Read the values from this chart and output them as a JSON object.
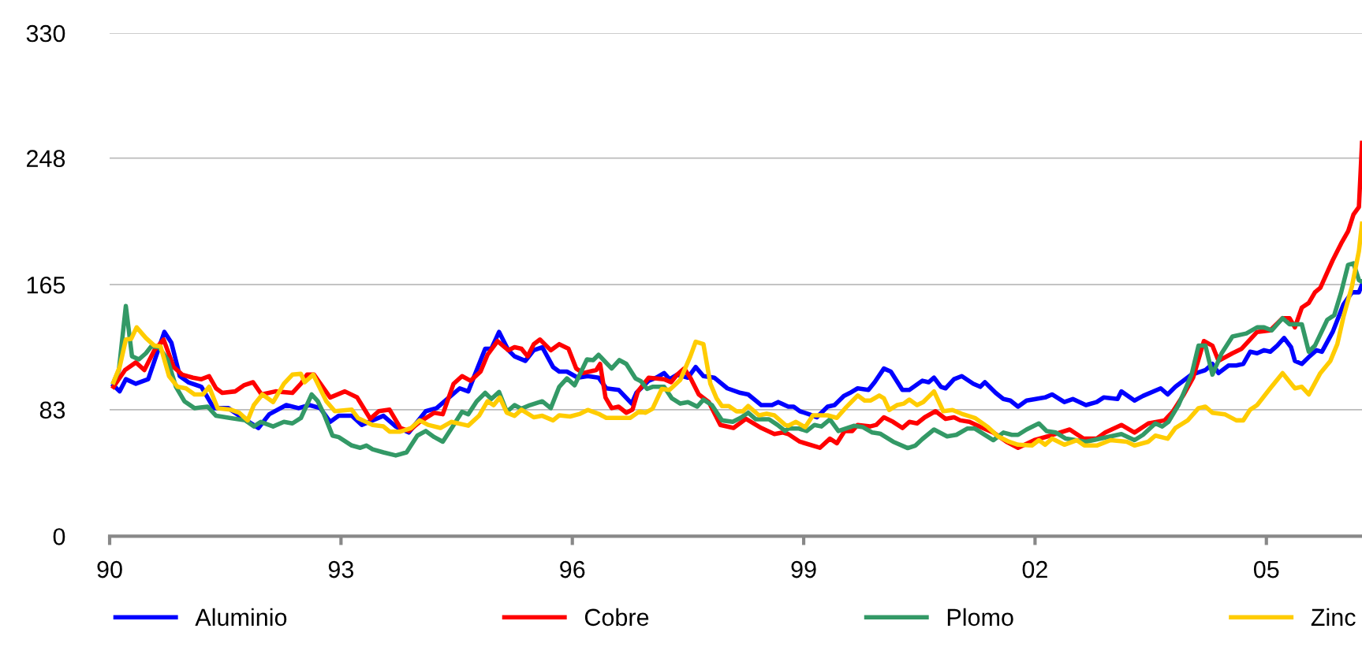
{
  "chart_data": {
    "type": "line",
    "xlim": [
      1990,
      2006.24
    ],
    "ylim": [
      0,
      330
    ],
    "yticks": [
      0,
      83,
      165,
      248,
      330
    ],
    "xticks": [
      {
        "value": 1990,
        "label": "90"
      },
      {
        "value": 1993,
        "label": "93"
      },
      {
        "value": 1996,
        "label": "96"
      },
      {
        "value": 1999,
        "label": "99"
      },
      {
        "value": 2002,
        "label": "02"
      },
      {
        "value": 2005,
        "label": "05"
      }
    ],
    "grid": "y",
    "legend": "bottom",
    "marker": "none",
    "line_style": "solid",
    "series": [
      {
        "name": "Aluminio",
        "color": "#0000ff",
        "x": [
          1990.05,
          1990.13,
          1990.21,
          1990.34,
          1990.5,
          1990.71,
          1990.8,
          1990.91,
          1991.02,
          1991.19,
          1991.35,
          1991.54,
          1991.74,
          1991.93,
          1992.07,
          1992.29,
          1992.45,
          1992.59,
          1992.73,
          1992.86,
          1992.97,
          1993.14,
          1993.27,
          1993.55,
          1993.71,
          1993.88,
          1994.1,
          1994.24,
          1994.4,
          1994.54,
          1994.65,
          1994.87,
          1994.95,
          1995.05,
          1995.17,
          1995.25,
          1995.39,
          1995.5,
          1995.61,
          1995.75,
          1995.83,
          1995.93,
          1996.07,
          1996.2,
          1996.34,
          1996.44,
          1996.6,
          1996.77,
          1996.83,
          1996.99,
          1997.09,
          1997.19,
          1997.26,
          1997.36,
          1997.5,
          1997.6,
          1997.7,
          1997.84,
          1998.01,
          1998.18,
          1998.28,
          1998.45,
          1998.59,
          1998.67,
          1998.8,
          1998.87,
          1998.95,
          1999.07,
          1999.17,
          1999.31,
          1999.4,
          1999.52,
          1999.6,
          1999.7,
          1999.84,
          1999.92,
          2000.04,
          2000.13,
          2000.28,
          2000.37,
          2000.54,
          2000.62,
          2000.69,
          2000.78,
          2000.84,
          2000.95,
          2001.05,
          2001.2,
          2001.29,
          2001.35,
          2001.49,
          2001.59,
          2001.68,
          2001.78,
          2001.89,
          2002.13,
          2002.22,
          2002.38,
          2002.49,
          2002.66,
          2002.8,
          2002.89,
          2003.07,
          2003.12,
          2003.29,
          2003.4,
          2003.63,
          2003.72,
          2003.82,
          2004.03,
          2004.21,
          2004.3,
          2004.38,
          2004.51,
          2004.61,
          2004.7,
          2004.79,
          2004.88,
          2004.97,
          2005.05,
          2005.14,
          2005.23,
          2005.32,
          2005.37,
          2005.46,
          2005.56,
          2005.65,
          2005.72,
          2005.86,
          2006.0,
          2006.11,
          2006.2,
          2006.24
        ],
        "values": [
          99,
          95,
          103,
          100,
          103,
          134,
          127,
          105,
          101,
          98,
          84,
          84,
          77,
          71,
          80,
          86,
          84,
          86,
          84,
          75,
          79,
          79,
          73,
          79,
          72,
          68,
          82,
          84,
          91,
          97,
          95,
          123,
          123,
          134,
          122,
          118,
          115,
          122,
          124,
          111,
          108,
          108,
          104,
          105,
          104,
          97,
          96,
          87,
          94,
          102,
          104,
          107,
          103,
          106,
          104,
          111,
          105,
          104,
          97,
          94,
          93,
          86,
          86,
          88,
          85,
          85,
          82,
          80,
          78,
          85,
          86,
          92,
          94,
          97,
          96,
          101,
          110,
          108,
          96,
          96,
          102,
          101,
          104,
          98,
          97,
          103,
          105,
          100,
          98,
          101,
          94,
          90,
          89,
          85,
          89,
          91,
          93,
          88,
          90,
          86,
          88,
          91,
          90,
          95,
          89,
          92,
          97,
          93,
          98,
          106,
          109,
          113,
          107,
          112,
          112,
          113,
          121,
          120,
          122,
          121,
          125,
          130,
          124,
          115,
          113,
          118,
          122,
          121,
          134,
          152,
          160,
          160,
          165
        ]
      },
      {
        "name": "Cobre",
        "color": "#ff0000",
        "x": [
          1990.05,
          1990.2,
          1990.34,
          1990.45,
          1990.58,
          1990.7,
          1990.83,
          1990.94,
          1991.08,
          1991.19,
          1991.29,
          1991.38,
          1991.46,
          1991.63,
          1991.74,
          1991.86,
          1991.97,
          1992.15,
          1992.37,
          1992.48,
          1992.56,
          1992.65,
          1992.86,
          1993.05,
          1993.21,
          1993.38,
          1993.49,
          1993.63,
          1993.77,
          1993.88,
          1994.02,
          1994.21,
          1994.32,
          1994.46,
          1994.57,
          1994.68,
          1994.81,
          1994.9,
          1995.03,
          1995.17,
          1995.25,
          1995.34,
          1995.42,
          1995.5,
          1995.58,
          1995.72,
          1995.83,
          1995.95,
          1996.05,
          1996.14,
          1996.31,
          1996.36,
          1996.43,
          1996.51,
          1996.6,
          1996.7,
          1996.78,
          1996.85,
          1996.99,
          1997.19,
          1997.28,
          1997.36,
          1997.45,
          1997.53,
          1997.64,
          1997.77,
          1997.92,
          1998.09,
          1998.25,
          1998.45,
          1998.62,
          1998.73,
          1998.8,
          1998.95,
          1999.21,
          1999.34,
          1999.43,
          1999.53,
          1999.63,
          1999.7,
          1999.86,
          1999.94,
          2000.04,
          2000.16,
          2000.28,
          2000.37,
          2000.47,
          2000.57,
          2000.71,
          2000.84,
          2000.95,
          2001.03,
          2001.15,
          2001.32,
          2001.46,
          2001.63,
          2001.78,
          2001.99,
          2002.2,
          2002.45,
          2002.63,
          2002.8,
          2002.91,
          2003.12,
          2003.29,
          2003.47,
          2003.68,
          2003.79,
          2003.93,
          2004.05,
          2004.19,
          2004.3,
          2004.38,
          2004.56,
          2004.68,
          2004.88,
          2005.05,
          2005.21,
          2005.3,
          2005.37,
          2005.46,
          2005.55,
          2005.63,
          2005.7,
          2005.86,
          2005.97,
          2006.06,
          2006.13,
          2006.2,
          2006.24
        ],
        "values": [
          98,
          109,
          114,
          109,
          122,
          129,
          111,
          106,
          104,
          103,
          105,
          97,
          94,
          95,
          99,
          101,
          93,
          95,
          94,
          100,
          106,
          106,
          91,
          95,
          91,
          77,
          82,
          83,
          71,
          69,
          75,
          81,
          80,
          100,
          105,
          102,
          108,
          119,
          128,
          122,
          124,
          123,
          118,
          126,
          129,
          122,
          126,
          123,
          110,
          107,
          109,
          113,
          91,
          84,
          85,
          81,
          83,
          95,
          104,
          103,
          101,
          106,
          110,
          104,
          93,
          88,
          73,
          71,
          77,
          71,
          67,
          68,
          67,
          62,
          58,
          64,
          61,
          69,
          69,
          73,
          72,
          73,
          78,
          75,
          71,
          75,
          74,
          78,
          82,
          77,
          78,
          76,
          75,
          71,
          68,
          62,
          58,
          63,
          66,
          70,
          64,
          64,
          68,
          73,
          68,
          74,
          76,
          82,
          93,
          104,
          128,
          125,
          115,
          120,
          123,
          134,
          135,
          143,
          143,
          137,
          150,
          153,
          160,
          163,
          181,
          192,
          200,
          211,
          216,
          258
        ]
      },
      {
        "name": "Plomo",
        "color": "#339966",
        "x": [
          1990.05,
          1990.12,
          1990.21,
          1990.29,
          1990.38,
          1990.47,
          1990.54,
          1990.64,
          1990.75,
          1990.86,
          1990.97,
          1991.1,
          1991.27,
          1991.38,
          1991.57,
          1991.76,
          1991.87,
          1991.96,
          1992.12,
          1992.26,
          1992.37,
          1992.48,
          1992.62,
          1992.7,
          1992.78,
          1992.89,
          1992.97,
          1993.14,
          1993.25,
          1993.33,
          1993.41,
          1993.55,
          1993.71,
          1993.85,
          1993.99,
          1994.1,
          1994.21,
          1994.32,
          1994.43,
          1994.57,
          1994.65,
          1994.76,
          1994.87,
          1994.95,
          1995.05,
          1995.15,
          1995.25,
          1995.34,
          1995.45,
          1995.61,
          1995.72,
          1995.83,
          1995.93,
          1996.03,
          1996.19,
          1996.27,
          1996.34,
          1996.51,
          1996.61,
          1996.7,
          1996.82,
          1996.89,
          1996.97,
          1997.04,
          1997.19,
          1997.29,
          1997.4,
          1997.5,
          1997.62,
          1997.7,
          1997.81,
          1997.94,
          1998.08,
          1998.18,
          1998.28,
          1998.38,
          1998.55,
          1998.66,
          1998.76,
          1998.8,
          1998.94,
          1999.04,
          1999.14,
          1999.23,
          1999.34,
          1999.45,
          1999.65,
          1999.77,
          1999.89,
          1999.99,
          2000.16,
          2000.35,
          2000.45,
          2000.54,
          2000.69,
          2000.86,
          2000.98,
          2001.12,
          2001.22,
          2001.46,
          2001.59,
          2001.7,
          2001.78,
          2001.89,
          2002.05,
          2002.15,
          2002.27,
          2002.4,
          2002.66,
          2003.12,
          2003.29,
          2003.4,
          2003.56,
          2003.65,
          2003.73,
          2003.86,
          2004.03,
          2004.12,
          2004.21,
          2004.3,
          2004.42,
          2004.56,
          2004.74,
          2004.88,
          2004.97,
          2005.07,
          2005.21,
          2005.3,
          2005.46,
          2005.55,
          2005.63,
          2005.79,
          2005.88,
          2005.97,
          2006.06,
          2006.13,
          2006.2,
          2006.24
        ],
        "values": [
          101,
          109,
          151,
          118,
          116,
          120,
          124.5,
          124,
          116,
          98,
          88.5,
          84,
          85,
          79,
          77.5,
          76,
          72,
          75,
          72,
          75,
          74,
          77.5,
          93,
          88.5,
          80,
          66,
          65,
          59.5,
          58,
          59.5,
          57,
          55,
          53,
          55,
          66,
          69,
          65,
          62,
          70.5,
          81.6,
          80,
          88.5,
          94,
          90,
          94.6,
          81.6,
          86,
          83.6,
          86,
          88.5,
          84,
          98,
          103.5,
          99,
          116,
          115.5,
          119,
          110,
          115.5,
          113,
          103.5,
          101.7,
          96.6,
          98,
          98,
          90.5,
          87,
          88,
          85,
          89.6,
          86,
          76,
          75,
          77.6,
          81,
          76.7,
          76.7,
          73,
          69,
          70.6,
          70.6,
          69,
          73,
          72,
          76.7,
          69,
          72.4,
          71.5,
          68,
          67.3,
          62,
          57.8,
          59.5,
          63.8,
          70,
          65.5,
          66.5,
          70.6,
          70.6,
          63,
          68,
          66.5,
          66.5,
          70,
          74,
          69,
          68,
          64,
          62,
          67,
          63,
          66.5,
          74,
          72,
          75,
          86,
          106,
          125,
          125,
          106,
          120,
          131,
          133,
          137,
          137,
          135,
          143,
          139,
          139,
          121,
          125,
          142,
          145,
          160,
          178,
          179,
          168,
          167
        ]
      },
      {
        "name": "Zinc",
        "color": "#ffcc00",
        "x": [
          1990.05,
          1990.13,
          1990.21,
          1990.28,
          1990.35,
          1990.47,
          1990.58,
          1990.66,
          1990.77,
          1990.88,
          1990.99,
          1991.1,
          1991.21,
          1991.29,
          1991.4,
          1991.57,
          1991.68,
          1991.79,
          1991.87,
          1991.98,
          1992.12,
          1992.26,
          1992.37,
          1992.48,
          1992.53,
          1992.64,
          1992.81,
          1992.92,
          1993.14,
          1993.22,
          1993.41,
          1993.55,
          1993.63,
          1993.77,
          1993.91,
          1994.02,
          1994.13,
          1994.29,
          1994.43,
          1994.65,
          1994.79,
          1994.9,
          1994.98,
          1995.06,
          1995.15,
          1995.25,
          1995.34,
          1995.5,
          1995.61,
          1995.75,
          1995.83,
          1995.97,
          1996.1,
          1996.2,
          1996.34,
          1996.44,
          1996.75,
          1996.87,
          1996.95,
          1997.04,
          1997.16,
          1997.26,
          1997.4,
          1997.53,
          1997.6,
          1997.7,
          1997.79,
          1997.87,
          1997.94,
          1998.03,
          1998.13,
          1998.21,
          1998.28,
          1998.42,
          1998.52,
          1998.62,
          1998.76,
          1998.8,
          1998.9,
          1999.02,
          1999.12,
          1999.31,
          1999.43,
          1999.55,
          1999.7,
          1999.79,
          1999.87,
          1999.98,
          2000.04,
          2000.11,
          2000.21,
          2000.3,
          2000.37,
          2000.47,
          2000.55,
          2000.69,
          2000.81,
          2000.93,
          2001.05,
          2001.22,
          2001.39,
          2001.52,
          2001.66,
          2001.78,
          2001.96,
          2002.05,
          2002.13,
          2002.22,
          2002.38,
          2002.54,
          2002.64,
          2002.8,
          2002.98,
          2003.19,
          2003.29,
          2003.47,
          2003.56,
          2003.72,
          2003.82,
          2003.98,
          2004.12,
          2004.21,
          2004.3,
          2004.46,
          2004.61,
          2004.7,
          2004.79,
          2004.88,
          2005.05,
          2005.21,
          2005.37,
          2005.46,
          2005.55,
          2005.7,
          2005.83,
          2005.92,
          2006.0,
          2006.11,
          2006.2,
          2006.24
        ],
        "values": [
          101,
          111,
          129,
          129.5,
          137,
          130,
          125,
          124.5,
          105,
          98,
          97,
          93,
          93,
          98,
          84,
          83,
          81,
          76,
          86,
          93,
          88,
          100,
          106,
          106.5,
          101,
          106,
          88.5,
          82,
          83,
          77.5,
          73,
          72,
          68.6,
          68.6,
          71,
          76,
          73,
          71,
          75,
          72.5,
          79,
          88.5,
          86,
          91,
          81,
          79,
          83,
          78,
          79,
          76,
          79.3,
          78.5,
          80.3,
          82.8,
          80.3,
          77.6,
          77.6,
          81.9,
          81,
          83.6,
          96.6,
          96,
          102.6,
          118,
          127.6,
          126,
          100,
          90.5,
          85.4,
          85.4,
          81.9,
          81.9,
          85.4,
          79.3,
          80.3,
          79.3,
          73,
          72.4,
          75,
          71.5,
          79.3,
          79.3,
          77.6,
          84.5,
          92.3,
          89,
          89,
          92.3,
          90.5,
          82.8,
          86,
          87,
          89.6,
          86,
          88,
          95,
          82,
          82.8,
          80.3,
          77.6,
          71.5,
          65.5,
          62,
          60,
          59.5,
          63,
          60,
          64,
          60,
          63,
          59.5,
          59.5,
          63,
          62,
          59.5,
          62,
          66,
          64,
          71,
          76,
          84,
          85,
          81,
          80,
          76,
          76,
          83,
          86,
          97,
          107,
          97,
          98,
          93,
          107,
          115,
          126,
          144,
          164,
          187,
          205
        ]
      }
    ]
  }
}
